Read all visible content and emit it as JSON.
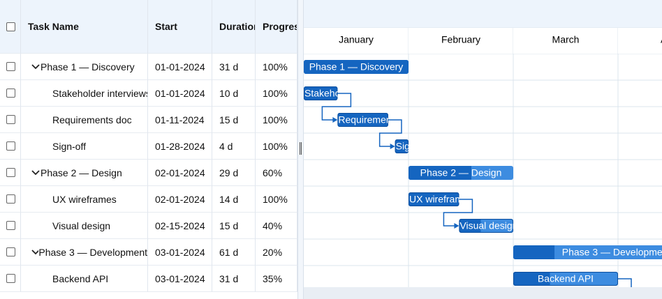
{
  "columns": [
    "Task Name",
    "Start",
    "Duration",
    "Progress"
  ],
  "months": [
    "January",
    "February",
    "March",
    "April"
  ],
  "rows": [
    {
      "summary": true,
      "name": "Phase 1 — Discovery",
      "start": "01-01-2024",
      "duration": "31 d",
      "progress": "100%"
    },
    {
      "summary": false,
      "name": "Stakeholder interviews",
      "start": "01-01-2024",
      "duration": "10 d",
      "progress": "100%"
    },
    {
      "summary": false,
      "name": "Requirements doc",
      "start": "01-11-2024",
      "duration": "15 d",
      "progress": "100%"
    },
    {
      "summary": false,
      "name": "Sign-off",
      "start": "01-28-2024",
      "duration": "4 d",
      "progress": "100%"
    },
    {
      "summary": true,
      "name": "Phase 2 — Design",
      "start": "02-01-2024",
      "duration": "29 d",
      "progress": "60%"
    },
    {
      "summary": false,
      "name": "UX wireframes",
      "start": "02-01-2024",
      "duration": "14 d",
      "progress": "100%"
    },
    {
      "summary": false,
      "name": "Visual design",
      "start": "02-15-2024",
      "duration": "15 d",
      "progress": "40%"
    },
    {
      "summary": true,
      "name": "Phase 3 — Development",
      "start": "03-01-2024",
      "duration": "61 d",
      "progress": "20%"
    },
    {
      "summary": false,
      "name": "Backend API",
      "start": "03-01-2024",
      "duration": "31 d",
      "progress": "35%"
    }
  ]
}
